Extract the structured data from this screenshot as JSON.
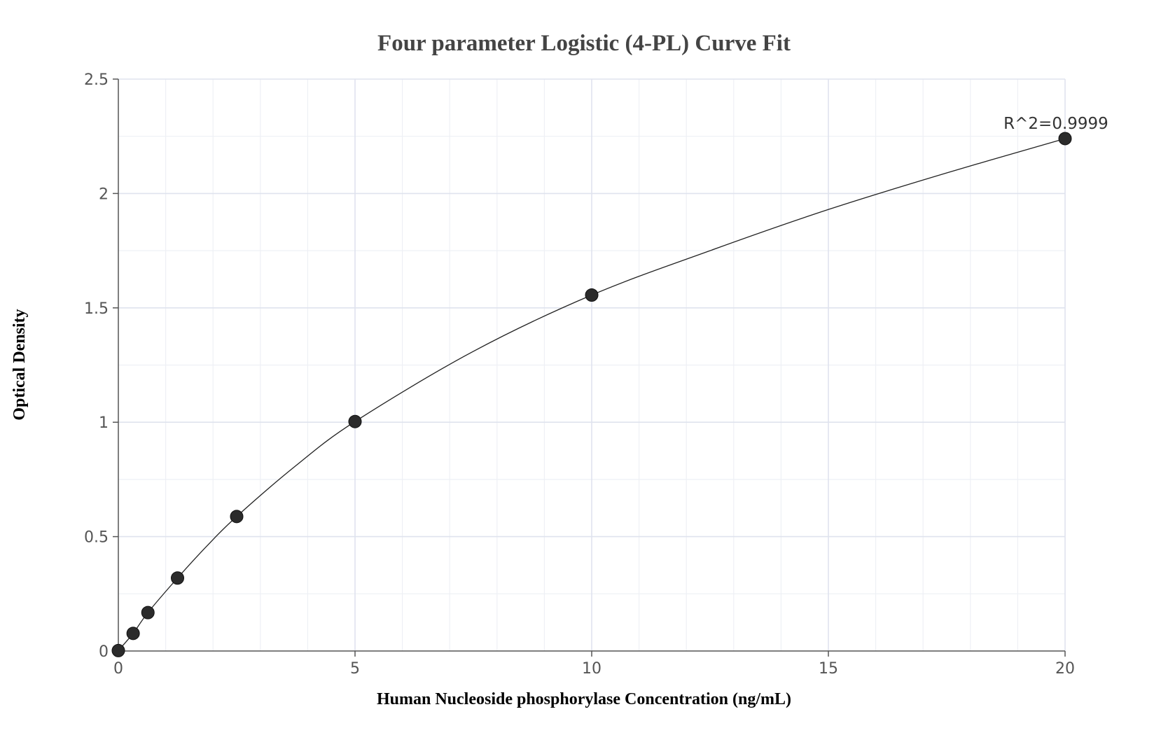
{
  "chart_data": {
    "type": "scatter",
    "title": "Four parameter Logistic (4-PL) Curve Fit",
    "xlabel": "Human Nucleoside phosphorylase Concentration (ng/mL)",
    "ylabel": "Optical Density",
    "xlim": [
      0,
      20
    ],
    "ylim": [
      0,
      2.5
    ],
    "x_ticks": [
      0,
      5,
      10,
      15,
      20
    ],
    "y_ticks": [
      0,
      0.5,
      1,
      1.5,
      2,
      2.5
    ],
    "x_tick_labels": [
      "0",
      "5",
      "10",
      "15",
      "20"
    ],
    "y_tick_labels": [
      "0",
      "0.5",
      "1",
      "1.5",
      "2",
      "2.5"
    ],
    "grid": true,
    "legend": "none",
    "annotation": "R^2=0.9999",
    "series": [
      {
        "x": [
          0,
          0.3125,
          0.625,
          1.25,
          2.5,
          5,
          10,
          20
        ],
        "y": [
          0.002,
          0.077,
          0.168,
          0.319,
          0.588,
          1.003,
          1.556,
          2.24
        ],
        "marker_color": "#2b2b2b"
      }
    ],
    "fit_curve": {
      "x": [
        0,
        0.3125,
        0.625,
        1.25,
        1.875,
        2.5,
        3.75,
        5,
        7.5,
        10,
        12.5,
        15,
        17.5,
        20
      ],
      "y": [
        0.002,
        0.077,
        0.168,
        0.319,
        0.46,
        0.588,
        0.81,
        1.003,
        1.31,
        1.556,
        1.75,
        1.93,
        2.09,
        2.24
      ],
      "color": "#222222"
    }
  }
}
